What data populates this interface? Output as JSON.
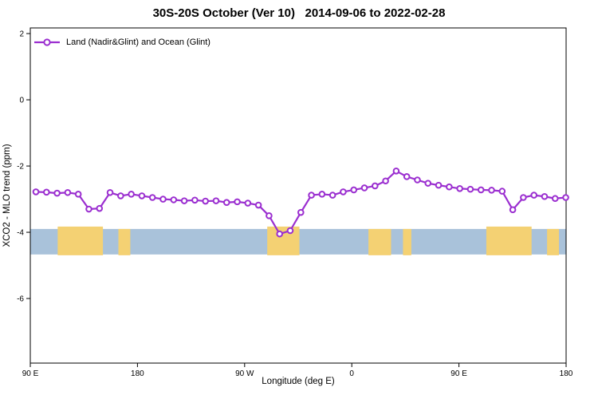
{
  "title": "30S-20S October (Ver 10)   2014-09-06 to 2022-02-28",
  "legend": {
    "label": "Land (Nadir&Glint) and Ocean (Glint)"
  },
  "axes": {
    "xlabel": "Longitude (deg E)",
    "ylabel": "XCO2 - MLO trend (ppm)"
  },
  "chart_data": {
    "type": "line",
    "title": "30S-20S October (Ver 10)   2014-09-06 to 2022-02-28",
    "xlabel": "Longitude (deg E)",
    "ylabel": "XCO2 - MLO trend (ppm)",
    "grid": false,
    "legend_position": "top-left",
    "xlim": [
      90,
      540
    ],
    "ylim": [
      -7.95,
      2.17
    ],
    "x_ticks": [
      {
        "pos": 90,
        "label": "90 E"
      },
      {
        "pos": 180,
        "label": "180"
      },
      {
        "pos": 270,
        "label": "90 W"
      },
      {
        "pos": 360,
        "label": "0"
      },
      {
        "pos": 450,
        "label": "90 E"
      },
      {
        "pos": 540,
        "label": "180"
      }
    ],
    "y_ticks": [
      {
        "pos": 2,
        "label": "2"
      },
      {
        "pos": 0,
        "label": "0"
      },
      {
        "pos": -2,
        "label": "-2"
      },
      {
        "pos": -4,
        "label": "-4"
      },
      {
        "pos": -6,
        "label": "-6"
      }
    ],
    "series": [
      {
        "name": "Land (Nadir&Glint) and Ocean (Glint)",
        "color": "#9b2fd0",
        "marker": "open-circle",
        "x": [
          94.7,
          103.6,
          112.5,
          121.4,
          130.3,
          139.2,
          148.1,
          157.0,
          165.9,
          174.8,
          183.7,
          192.6,
          201.5,
          210.4,
          219.3,
          228.2,
          237.1,
          246.0,
          254.9,
          263.8,
          272.7,
          281.6,
          290.5,
          299.4,
          308.3,
          317.2,
          326.1,
          335.0,
          343.9,
          352.8,
          361.7,
          370.6,
          379.5,
          388.4,
          397.3,
          406.2,
          415.1,
          424.0,
          432.9,
          441.8,
          450.7,
          459.6,
          468.5,
          477.4,
          486.3,
          495.2,
          504.1,
          513.0,
          521.9,
          530.8,
          539.7
        ],
        "y": [
          -2.78,
          -2.79,
          -2.82,
          -2.8,
          -2.85,
          -3.3,
          -3.28,
          -2.8,
          -2.9,
          -2.85,
          -2.9,
          -2.95,
          -3.0,
          -3.02,
          -3.05,
          -3.03,
          -3.06,
          -3.05,
          -3.1,
          -3.08,
          -3.12,
          -3.18,
          -3.5,
          -4.05,
          -3.95,
          -3.4,
          -2.88,
          -2.85,
          -2.88,
          -2.78,
          -2.72,
          -2.66,
          -2.6,
          -2.45,
          -2.15,
          -2.32,
          -2.42,
          -2.52,
          -2.58,
          -2.63,
          -2.68,
          -2.7,
          -2.72,
          -2.73,
          -2.76,
          -3.32,
          -2.95,
          -2.88,
          -2.92,
          -2.98,
          -2.95
        ]
      }
    ],
    "band": {
      "description": "land-ocean map strip",
      "y_top": -3.9,
      "y_bottom": -4.67,
      "ocean_color": "#a9c2da",
      "land_color": "#f4d173",
      "land_segments": [
        [
          113,
          151
        ],
        [
          164,
          174
        ],
        [
          289,
          316
        ],
        [
          374,
          393
        ],
        [
          403,
          410
        ],
        [
          473,
          511
        ],
        [
          524,
          534
        ]
      ]
    }
  }
}
